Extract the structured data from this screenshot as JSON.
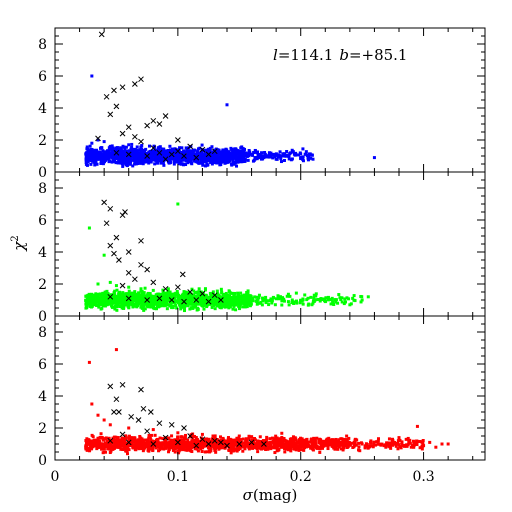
{
  "annotation": {
    "l_symbol": "l",
    "l_value": "=114.1",
    "b_symbol": "b",
    "b_value": "=+85.1"
  },
  "xlabel": {
    "symbol": "σ",
    "rest": "(mag)"
  },
  "ylabel": {
    "symbol": "χ",
    "sup": "2"
  },
  "colors": {
    "top": "#0000ff",
    "middle": "#00ff00",
    "bottom": "#ff0000",
    "cross": "#000000"
  },
  "chart_data": {
    "type": "scatter",
    "xlim": [
      0,
      0.35
    ],
    "ylim": [
      0,
      9
    ],
    "x_ticks": [
      0,
      0.1,
      0.2,
      0.3
    ],
    "x_tick_labels": [
      "0",
      "0.1",
      "0.2",
      "0.3"
    ],
    "y_ticks": [
      0,
      2,
      4,
      6,
      8
    ],
    "y_tick_labels": [
      "0",
      "2",
      "4",
      "6",
      "8"
    ],
    "panels": [
      {
        "color": "#0000ff",
        "dots": [
          [
            0.03,
            6.0
          ],
          [
            0.03,
            1.8
          ],
          [
            0.035,
            2.0
          ],
          [
            0.04,
            1.9
          ],
          [
            0.045,
            1.6
          ],
          [
            0.05,
            1.5
          ],
          [
            0.06,
            1.7
          ],
          [
            0.07,
            1.4
          ],
          [
            0.08,
            1.3
          ],
          [
            0.1,
            1.2
          ],
          [
            0.12,
            1.4
          ],
          [
            0.14,
            4.2
          ],
          [
            0.145,
            1.1
          ],
          [
            0.15,
            1.0
          ],
          [
            0.16,
            1.1
          ],
          [
            0.17,
            0.9
          ],
          [
            0.175,
            1.0
          ],
          [
            0.18,
            0.8
          ],
          [
            0.19,
            1.0
          ],
          [
            0.2,
            0.9
          ],
          [
            0.21,
            0.8
          ],
          [
            0.26,
            0.9
          ]
        ],
        "band": {
          "x_start": 0.025,
          "x_end": 0.155,
          "x_tail": 0.21,
          "y_center": 1.0,
          "y_spread": 0.45
        },
        "crosses": [
          [
            0.038,
            8.6
          ],
          [
            0.055,
            5.3
          ],
          [
            0.065,
            5.5
          ],
          [
            0.07,
            5.8
          ],
          [
            0.048,
            5.1
          ],
          [
            0.042,
            4.7
          ],
          [
            0.05,
            4.1
          ],
          [
            0.045,
            3.6
          ],
          [
            0.08,
            3.2
          ],
          [
            0.075,
            2.9
          ],
          [
            0.085,
            3.0
          ],
          [
            0.09,
            3.5
          ],
          [
            0.06,
            2.8
          ],
          [
            0.055,
            2.4
          ],
          [
            0.065,
            2.2
          ],
          [
            0.035,
            2.1
          ],
          [
            0.07,
            1.9
          ],
          [
            0.1,
            2.0
          ],
          [
            0.11,
            1.6
          ],
          [
            0.12,
            1.4
          ],
          [
            0.13,
            1.3
          ],
          [
            0.05,
            1.2
          ],
          [
            0.06,
            1.1
          ],
          [
            0.075,
            1.0
          ],
          [
            0.085,
            1.2
          ],
          [
            0.095,
            1.1
          ],
          [
            0.105,
            1.0
          ],
          [
            0.115,
            0.9
          ],
          [
            0.09,
            0.8
          ],
          [
            0.125,
            1.1
          ],
          [
            0.08,
            1.5
          ],
          [
            0.1,
            1.3
          ]
        ]
      },
      {
        "color": "#00ff00",
        "dots": [
          [
            0.028,
            5.5
          ],
          [
            0.035,
            2.0
          ],
          [
            0.04,
            3.8
          ],
          [
            0.045,
            2.1
          ],
          [
            0.05,
            1.9
          ],
          [
            0.06,
            1.8
          ],
          [
            0.07,
            1.7
          ],
          [
            0.08,
            1.6
          ],
          [
            0.09,
            1.4
          ],
          [
            0.1,
            7.0
          ],
          [
            0.12,
            1.4
          ],
          [
            0.15,
            1.2
          ],
          [
            0.17,
            1.0
          ],
          [
            0.19,
            0.9
          ],
          [
            0.21,
            0.8
          ],
          [
            0.22,
            0.9
          ],
          [
            0.23,
            0.8
          ],
          [
            0.24,
            0.7
          ],
          [
            0.25,
            1.0
          ],
          [
            0.255,
            1.2
          ]
        ],
        "band": {
          "x_start": 0.025,
          "x_end": 0.16,
          "x_tail": 0.25,
          "y_center": 1.0,
          "y_spread": 0.45
        },
        "crosses": [
          [
            0.04,
            7.1
          ],
          [
            0.045,
            6.7
          ],
          [
            0.057,
            6.5
          ],
          [
            0.055,
            6.3
          ],
          [
            0.042,
            5.8
          ],
          [
            0.05,
            4.9
          ],
          [
            0.07,
            4.7
          ],
          [
            0.045,
            4.4
          ],
          [
            0.06,
            4.0
          ],
          [
            0.048,
            3.9
          ],
          [
            0.052,
            3.5
          ],
          [
            0.07,
            3.2
          ],
          [
            0.075,
            2.9
          ],
          [
            0.06,
            2.7
          ],
          [
            0.104,
            2.6
          ],
          [
            0.065,
            2.3
          ],
          [
            0.08,
            2.1
          ],
          [
            0.055,
            1.9
          ],
          [
            0.09,
            1.7
          ],
          [
            0.1,
            1.8
          ],
          [
            0.11,
            1.5
          ],
          [
            0.12,
            1.4
          ],
          [
            0.13,
            1.3
          ],
          [
            0.045,
            1.2
          ],
          [
            0.06,
            1.1
          ],
          [
            0.075,
            1.0
          ],
          [
            0.085,
            1.1
          ],
          [
            0.095,
            1.0
          ],
          [
            0.105,
            0.9
          ],
          [
            0.115,
            1.0
          ],
          [
            0.125,
            0.9
          ],
          [
            0.135,
            1.0
          ]
        ]
      },
      {
        "color": "#ff0000",
        "dots": [
          [
            0.028,
            6.1
          ],
          [
            0.05,
            6.9
          ],
          [
            0.03,
            3.5
          ],
          [
            0.035,
            2.8
          ],
          [
            0.04,
            2.5
          ],
          [
            0.045,
            2.2
          ],
          [
            0.06,
            2.0
          ],
          [
            0.08,
            1.9
          ],
          [
            0.1,
            1.7
          ],
          [
            0.12,
            1.6
          ],
          [
            0.15,
            1.5
          ],
          [
            0.18,
            1.3
          ],
          [
            0.2,
            1.2
          ],
          [
            0.22,
            1.1
          ],
          [
            0.25,
            1.0
          ],
          [
            0.28,
            1.4
          ],
          [
            0.29,
            0.8
          ],
          [
            0.3,
            0.9
          ],
          [
            0.305,
            1.1
          ],
          [
            0.31,
            0.8
          ],
          [
            0.315,
            1.0
          ],
          [
            0.32,
            1.0
          ],
          [
            0.295,
            2.1
          ]
        ],
        "band": {
          "x_start": 0.025,
          "x_end": 0.24,
          "x_tail": 0.3,
          "y_center": 1.0,
          "y_spread": 0.4
        },
        "crosses": [
          [
            0.045,
            4.6
          ],
          [
            0.055,
            4.7
          ],
          [
            0.07,
            4.4
          ],
          [
            0.05,
            3.8
          ],
          [
            0.048,
            3.0
          ],
          [
            0.052,
            3.0
          ],
          [
            0.072,
            3.2
          ],
          [
            0.078,
            3.0
          ],
          [
            0.062,
            2.7
          ],
          [
            0.068,
            2.5
          ],
          [
            0.085,
            2.3
          ],
          [
            0.095,
            2.2
          ],
          [
            0.105,
            2.0
          ],
          [
            0.075,
            1.8
          ],
          [
            0.055,
            1.6
          ],
          [
            0.09,
            1.4
          ],
          [
            0.11,
            1.5
          ],
          [
            0.12,
            1.3
          ],
          [
            0.13,
            1.2
          ],
          [
            0.045,
            1.2
          ],
          [
            0.06,
            1.1
          ],
          [
            0.08,
            1.0
          ],
          [
            0.1,
            1.1
          ],
          [
            0.115,
            0.9
          ],
          [
            0.125,
            1.0
          ],
          [
            0.135,
            1.1
          ],
          [
            0.14,
            0.9
          ],
          [
            0.15,
            1.0
          ],
          [
            0.16,
            1.1
          ],
          [
            0.17,
            1.0
          ]
        ]
      }
    ]
  }
}
